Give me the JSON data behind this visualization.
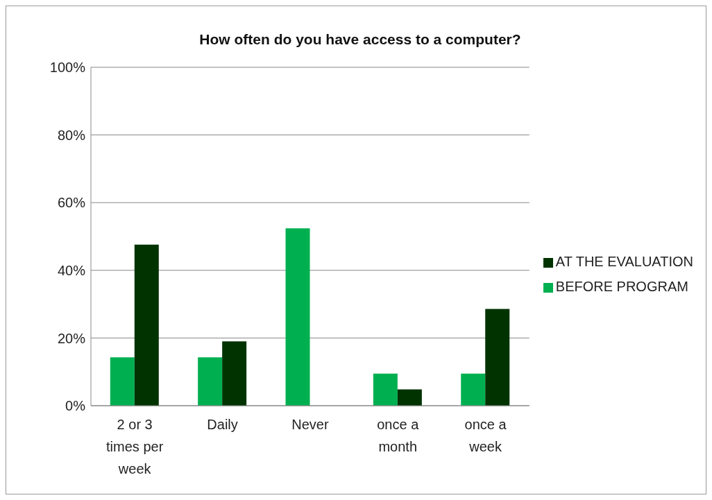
{
  "chart_data": {
    "type": "bar",
    "title": "How often do you have access to a computer?",
    "categories": [
      "2 or 3 times per week",
      "Daily",
      "Never",
      "once a month",
      "once a week"
    ],
    "series": [
      {
        "name": "BEFORE PROGRAM",
        "color": "#00b050",
        "values": [
          14.3,
          14.3,
          52.4,
          9.5,
          9.5
        ]
      },
      {
        "name": "AT THE EVALUATION",
        "color": "#003300",
        "values": [
          47.6,
          19.0,
          0,
          4.8,
          28.6
        ]
      }
    ],
    "ylim": [
      0,
      100
    ],
    "yticks": [
      {
        "value": 0,
        "label": "0%"
      },
      {
        "value": 20,
        "label": "20%"
      },
      {
        "value": 40,
        "label": "40%"
      },
      {
        "value": 60,
        "label": "60%"
      },
      {
        "value": 80,
        "label": "80%"
      },
      {
        "value": 100,
        "label": "100%"
      }
    ],
    "grid": "y",
    "legend": "right"
  }
}
